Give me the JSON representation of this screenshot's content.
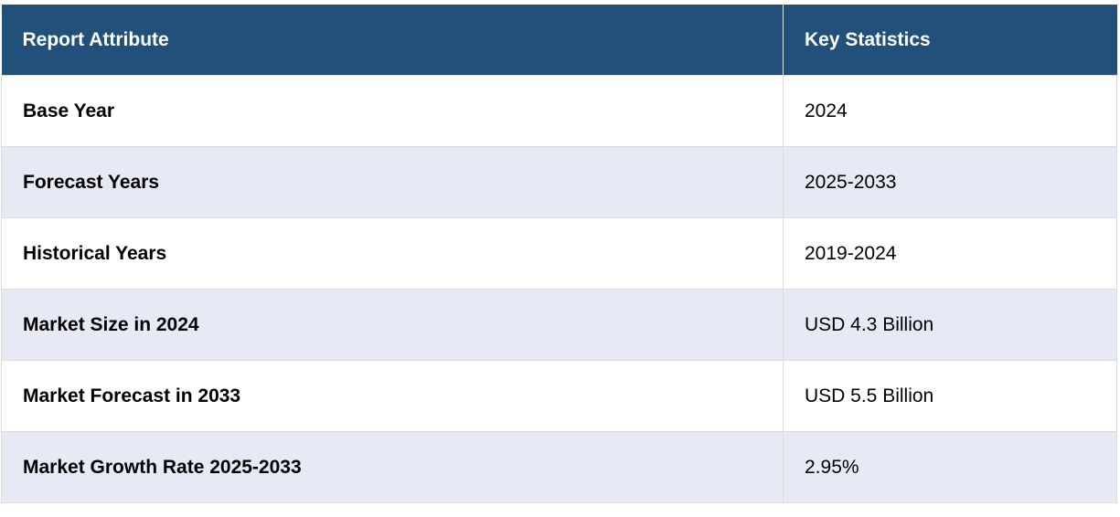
{
  "table": {
    "header": [
      "Report Attribute",
      "Key Statistics"
    ],
    "rows": [
      [
        "Base Year",
        "2024"
      ],
      [
        "Forecast Years",
        "2025-2033"
      ],
      [
        "Historical Years",
        "2019-2024"
      ],
      [
        "Market Size in 2024",
        "USD 4.3 Billion"
      ],
      [
        "Market Forecast in 2033",
        "USD 5.5 Billion"
      ],
      [
        "Market Growth Rate 2025-2033",
        "2.95%"
      ]
    ]
  }
}
